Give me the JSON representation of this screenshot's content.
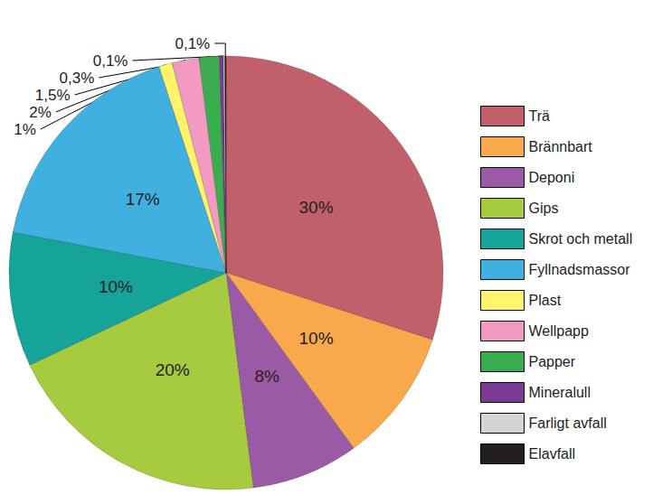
{
  "chart_data": {
    "type": "pie",
    "categories": [
      "Trä",
      "Brännbart",
      "Deponi",
      "Gips",
      "Skrot och metall",
      "Fyllnadsmassor",
      "Plast",
      "Wellpapp",
      "Papper",
      "Mineralull",
      "Farligt avfall",
      "Elavfall"
    ],
    "values": [
      30,
      10,
      8,
      20,
      10,
      17,
      1,
      2,
      1.5,
      0.3,
      0.1,
      0.1
    ],
    "value_labels": [
      "30%",
      "10%",
      "8%",
      "20%",
      "10%",
      "17%",
      "1%",
      "2%",
      "1,5%",
      "0,3%",
      "0,1%",
      "0,1%"
    ],
    "colors": [
      "#c1606b",
      "#f9a94b",
      "#9b5aa5",
      "#a6cb3f",
      "#16a39a",
      "#3fb0e0",
      "#fef36b",
      "#f29ac1",
      "#3aae4f",
      "#7b3a93",
      "#d4d4d4",
      "#231f20"
    ],
    "data_labels": true,
    "legend": "right"
  }
}
